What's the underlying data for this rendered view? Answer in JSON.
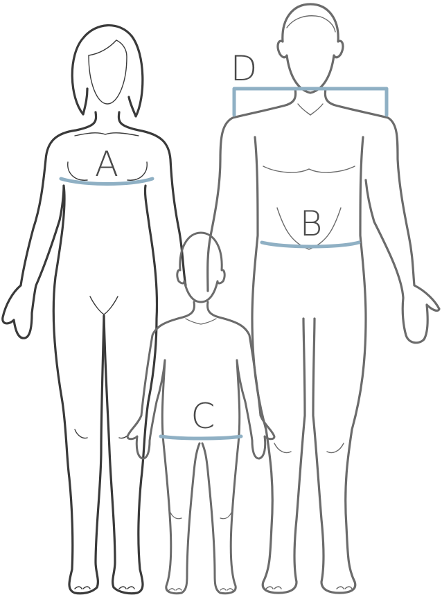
{
  "diagram": {
    "measure_color": "#8fb0c4",
    "figures": [
      "woman",
      "man",
      "child"
    ],
    "labels": {
      "a": "A",
      "b": "B",
      "c": "C",
      "d": "D"
    },
    "measurements": {
      "a": "bust",
      "b": "waist",
      "c": "hip",
      "d": "shoulder"
    }
  }
}
